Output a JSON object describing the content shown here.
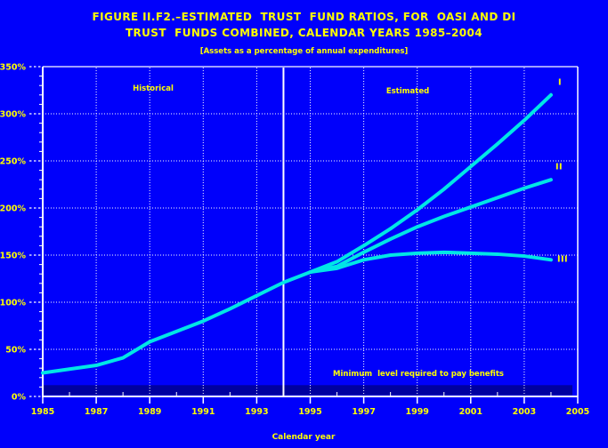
{
  "title": {
    "line1": "FIGURE II.F2.–ESTIMATED  TRUST  FUND RATIOS, FOR  OASI AND DI",
    "line2": "TRUST  FUNDS COMBINED, CALENDAR YEARS 1985–2004",
    "subtitle": "[Assets as a percentage of annual expenditures]"
  },
  "colors": {
    "background": "#0000FB",
    "text": "#FFFF00",
    "axis": "#FFFFFF",
    "grid": "#FFFFFF",
    "curve": "#00E6E6",
    "band": "#0000A0"
  },
  "chart_data": {
    "type": "line",
    "xlabel": "Calendar year",
    "ylabel": "",
    "xlim": [
      1985,
      2005
    ],
    "ylim": [
      0,
      350
    ],
    "grid": "dotted white on blue",
    "x_tick_labels": [
      "1985",
      "1987",
      "1989",
      "1991",
      "1993",
      "1995",
      "1997",
      "1999",
      "2001",
      "2003",
      "2005"
    ],
    "y_tick_labels": [
      "0%",
      "50%",
      "100%",
      "150%",
      "200%",
      "250%",
      "300%",
      "350%"
    ],
    "historical": {
      "years": [
        1985,
        1986,
        1987,
        1988,
        1989,
        1990,
        1991,
        1992,
        1993,
        1994,
        1995
      ],
      "values": [
        25,
        29,
        33,
        41,
        58,
        69,
        80,
        93,
        107,
        121,
        132
      ]
    },
    "series": [
      {
        "name": "I",
        "years": [
          1995,
          1996,
          1997,
          1998,
          1999,
          2000,
          2001,
          2002,
          2003,
          2004
        ],
        "values": [
          132,
          143,
          160,
          178,
          198,
          220,
          244,
          268,
          293,
          320
        ]
      },
      {
        "name": "II",
        "years": [
          1995,
          1996,
          1997,
          1998,
          1999,
          2000,
          2001,
          2002,
          2003,
          2004
        ],
        "values": [
          132,
          138,
          153,
          167,
          180,
          191,
          201,
          211,
          221,
          230
        ]
      },
      {
        "name": "III",
        "years": [
          1995,
          1996,
          1997,
          1998,
          1999,
          2000,
          2001,
          2002,
          2003,
          2004
        ],
        "values": [
          132,
          136,
          145,
          150,
          152,
          153,
          152,
          151,
          149,
          145
        ]
      }
    ],
    "divider_year": 1994,
    "minimum_benefit_band": {
      "from_pct": 0,
      "to_pct": 12
    },
    "annotations": {
      "historical": "Historical",
      "estimated": "Estimated",
      "minimum": "Minimum  level required to pay benefits"
    }
  }
}
